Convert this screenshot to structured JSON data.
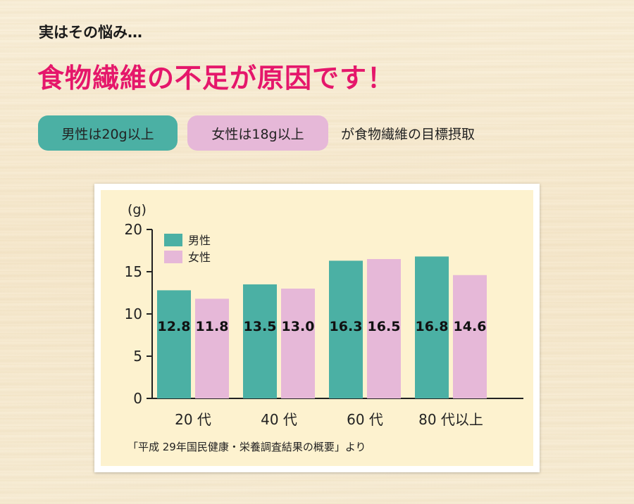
{
  "header": {
    "intro": "実はその悩み…",
    "headline": "食物繊維の不足が原因です！"
  },
  "targets": {
    "male": "男性は20g以上",
    "female": "女性は18g以上",
    "note": "が食物繊維の目標摂取"
  },
  "colors": {
    "male": "#4bb0a4",
    "female": "#e6b8d8",
    "accent": "#e5176b",
    "chart_bg": "#fdf2cf"
  },
  "chart_data": {
    "type": "bar",
    "ylabel": "(g)",
    "ylim": [
      0,
      20
    ],
    "yticks": [
      0,
      5,
      10,
      15,
      20
    ],
    "categories": [
      "20 代",
      "40 代",
      "60 代",
      "80 代以上"
    ],
    "series": [
      {
        "name": "男性",
        "values": [
          12.8,
          13.5,
          16.3,
          16.8
        ]
      },
      {
        "name": "女性",
        "values": [
          11.8,
          13.0,
          16.5,
          14.6
        ]
      }
    ],
    "data_labels": [
      [
        "12.8",
        "13.5",
        "16.3",
        "16.8"
      ],
      [
        "11.8",
        "13.0",
        "16.5",
        "14.6"
      ]
    ],
    "legend_position": "top-left",
    "grid": false,
    "source": "「平成 29年国民健康・栄養調査結果の概要」より"
  }
}
